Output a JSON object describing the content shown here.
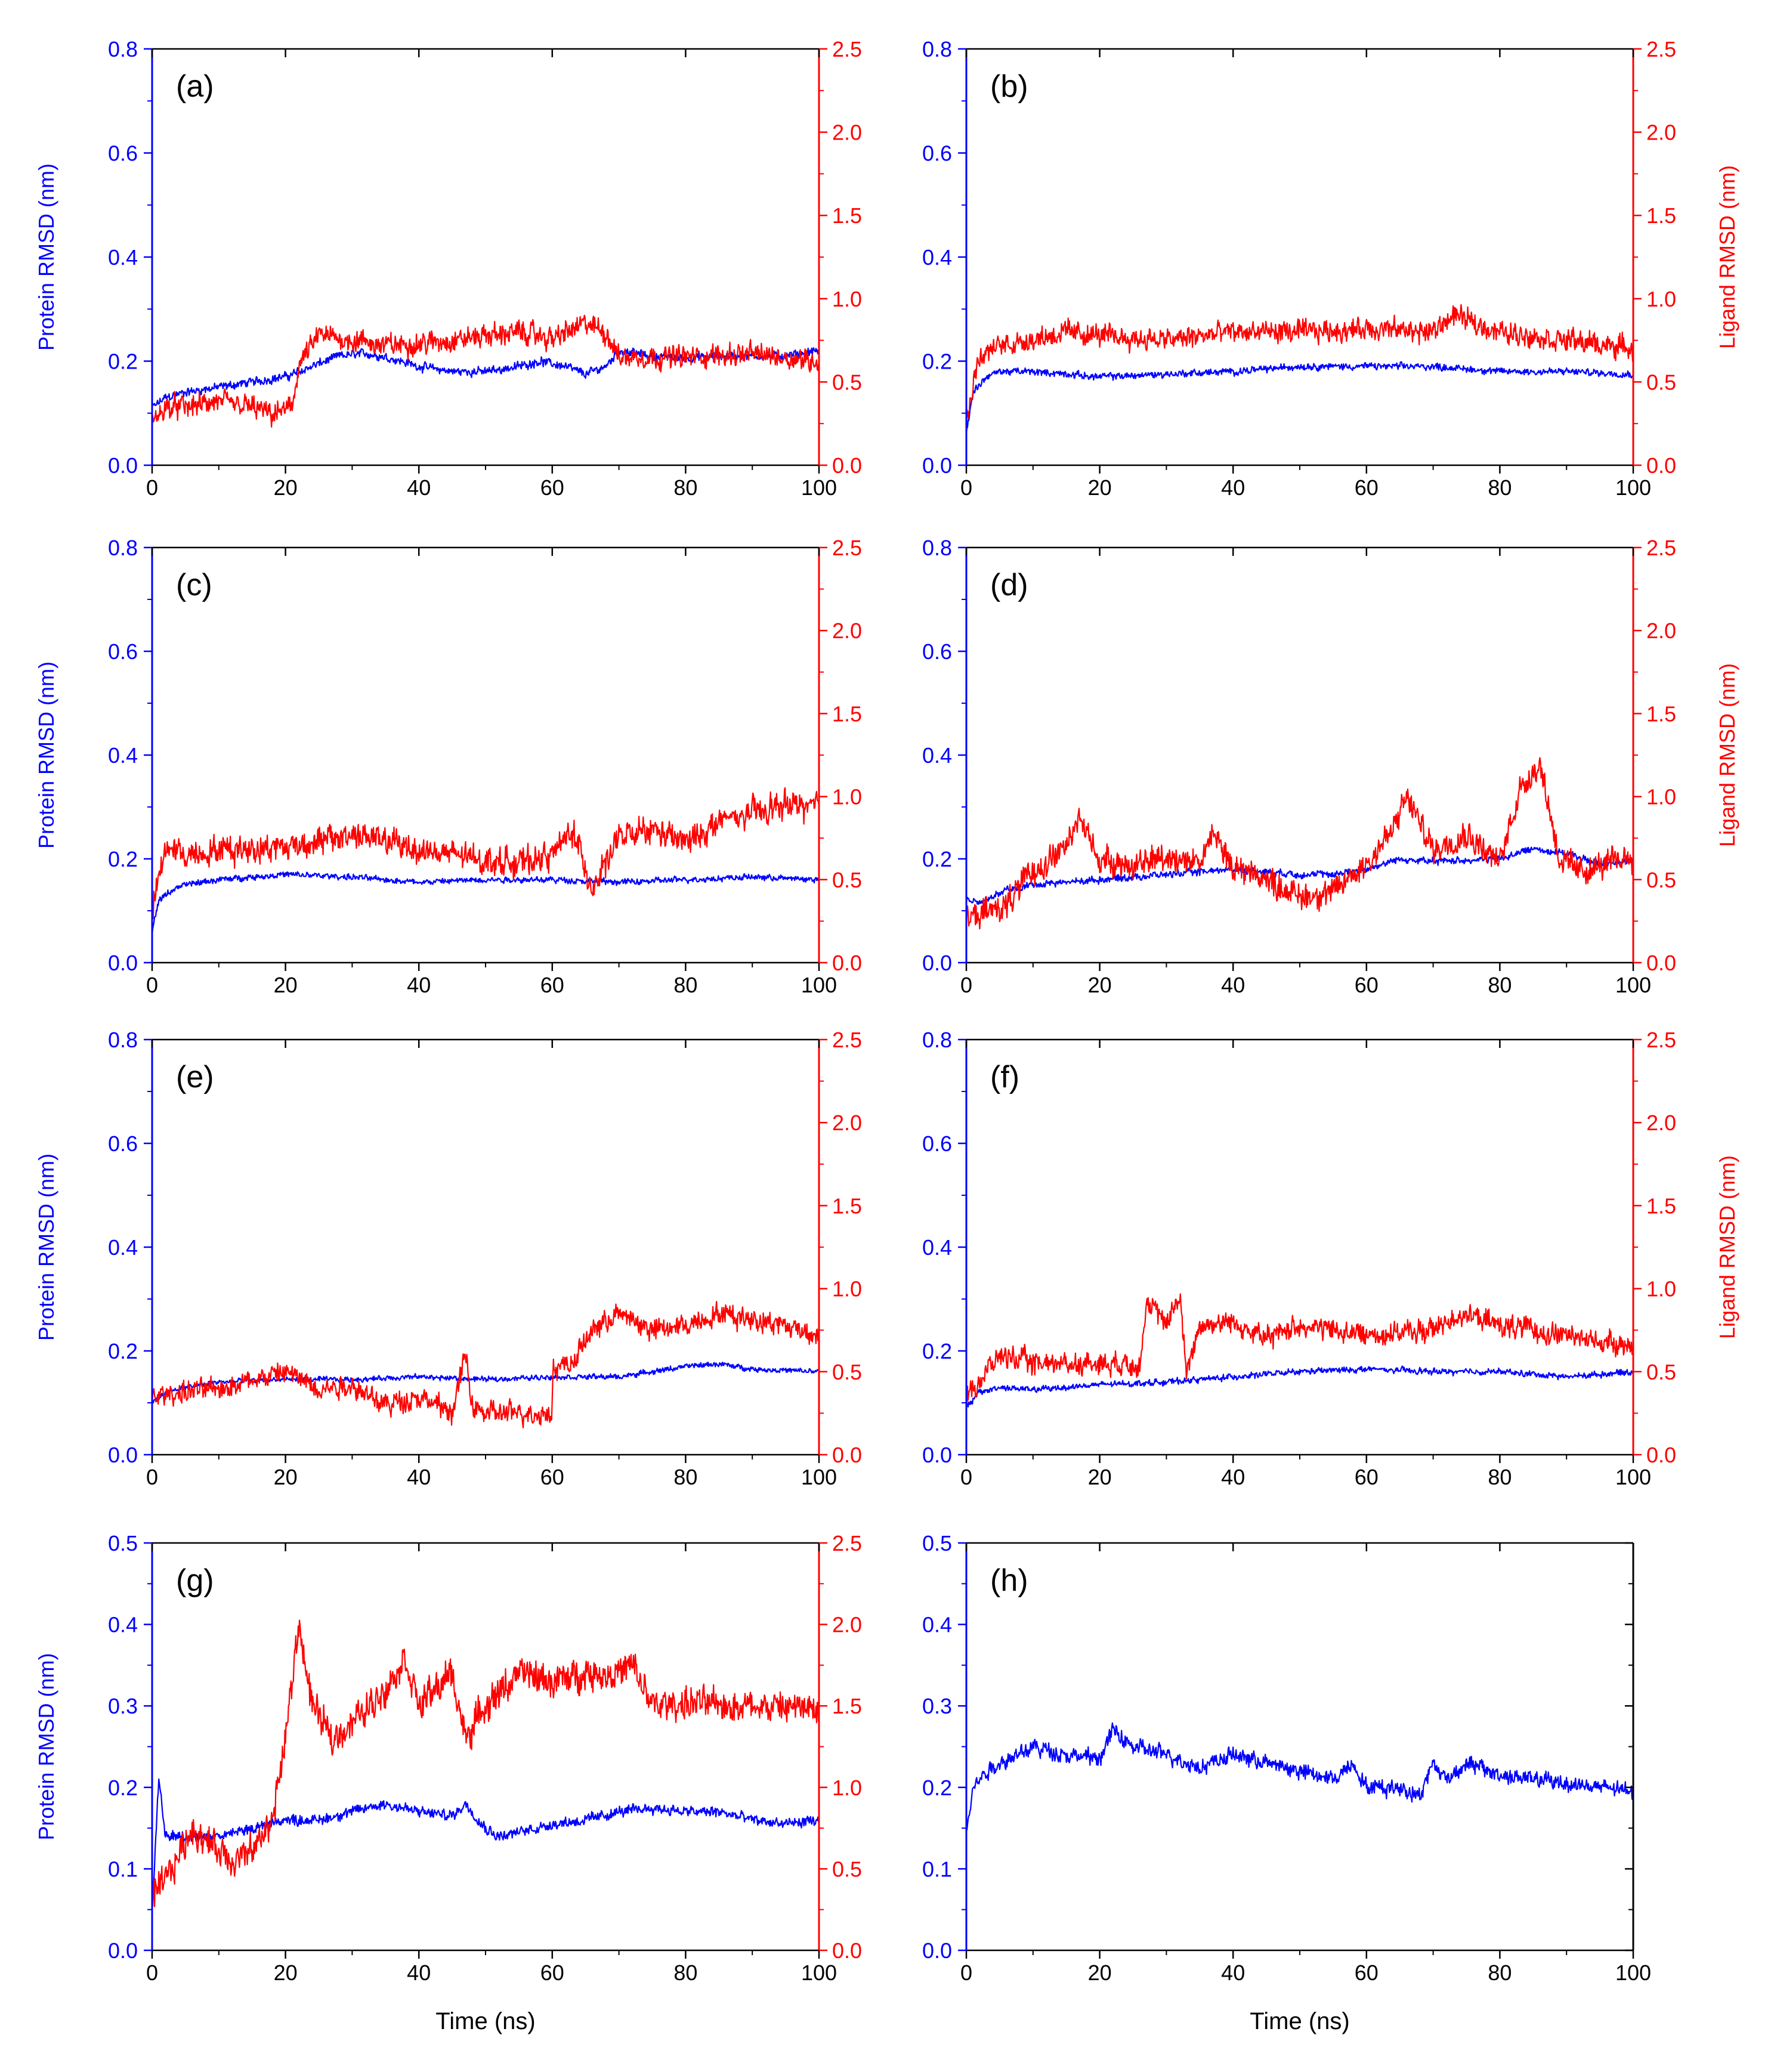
{
  "figure": {
    "colors": {
      "protein": "#0000ff",
      "ligand": "#ff0000",
      "frame": "#000000"
    }
  },
  "chart_data": [
    {
      "panel": "(a)",
      "type": "line",
      "xlabel": "",
      "ylabel_left": "Protein RMSD (nm)",
      "ylabel_right": "",
      "xlim": [
        0,
        100
      ],
      "xticks": [
        "0",
        "20",
        "40",
        "60",
        "80",
        "100"
      ],
      "ylim_left": [
        0,
        0.8
      ],
      "yticks_left": [
        "0.0",
        "0.2",
        "0.4",
        "0.6",
        "0.8"
      ],
      "ylim_right": [
        0,
        2.5
      ],
      "yticks_right": [
        "0.0",
        "0.5",
        "1.0",
        "1.5",
        "2.0",
        "2.5"
      ],
      "series": [
        {
          "name": "Protein RMSD",
          "axis": "left",
          "color": "#0000ff",
          "x": [
            0,
            2,
            5,
            10,
            15,
            20,
            24,
            28,
            32,
            36,
            40,
            45,
            50,
            55,
            58,
            62,
            65,
            68,
            70,
            75,
            80,
            85,
            90,
            95,
            100
          ],
          "y": [
            0.11,
            0.13,
            0.14,
            0.15,
            0.16,
            0.17,
            0.19,
            0.21,
            0.215,
            0.205,
            0.19,
            0.18,
            0.18,
            0.19,
            0.2,
            0.19,
            0.175,
            0.19,
            0.22,
            0.21,
            0.205,
            0.21,
            0.21,
            0.21,
            0.22
          ],
          "noise": 0.01
        },
        {
          "name": "Ligand RMSD",
          "axis": "right",
          "color": "#ff0000",
          "x": [
            0,
            2,
            5,
            10,
            15,
            18,
            21,
            22,
            25,
            30,
            35,
            40,
            45,
            50,
            55,
            60,
            65,
            68,
            70,
            75,
            80,
            85,
            90,
            95,
            100
          ],
          "y": [
            0.25,
            0.35,
            0.35,
            0.38,
            0.35,
            0.3,
            0.35,
            0.6,
            0.78,
            0.75,
            0.72,
            0.73,
            0.75,
            0.78,
            0.8,
            0.76,
            0.85,
            0.8,
            0.65,
            0.65,
            0.65,
            0.66,
            0.67,
            0.65,
            0.62
          ],
          "noise": 0.08
        }
      ]
    },
    {
      "panel": "(b)",
      "type": "line",
      "xlabel": "",
      "ylabel_left": "",
      "ylabel_right": "Ligand RMSD (nm)",
      "xlim": [
        0,
        100
      ],
      "xticks": [
        "0",
        "20",
        "40",
        "60",
        "80",
        "100"
      ],
      "ylim_left": [
        0,
        0.8
      ],
      "yticks_left": [
        "0.0",
        "0.2",
        "0.4",
        "0.6",
        "0.8"
      ],
      "ylim_right": [
        0,
        2.5
      ],
      "yticks_right": [
        "0.0",
        "0.5",
        "1.0",
        "1.5",
        "2.0",
        "2.5"
      ],
      "series": [
        {
          "name": "Protein RMSD",
          "axis": "left",
          "color": "#0000ff",
          "x": [
            0,
            1,
            3,
            5,
            10,
            20,
            30,
            40,
            50,
            60,
            70,
            80,
            90,
            100
          ],
          "y": [
            0.06,
            0.14,
            0.17,
            0.18,
            0.18,
            0.17,
            0.175,
            0.18,
            0.19,
            0.19,
            0.19,
            0.18,
            0.18,
            0.175
          ],
          "noise": 0.008
        },
        {
          "name": "Ligand RMSD",
          "axis": "right",
          "color": "#ff0000",
          "x": [
            0,
            1,
            2,
            5,
            10,
            15,
            20,
            30,
            40,
            50,
            60,
            70,
            73,
            80,
            90,
            100
          ],
          "y": [
            0.25,
            0.5,
            0.65,
            0.72,
            0.76,
            0.8,
            0.78,
            0.75,
            0.8,
            0.8,
            0.82,
            0.8,
            0.9,
            0.8,
            0.75,
            0.7
          ],
          "noise": 0.08
        }
      ]
    },
    {
      "panel": "(c)",
      "type": "line",
      "xlabel": "",
      "ylabel_left": "Protein RMSD (nm)",
      "ylabel_right": "",
      "xlim": [
        0,
        100
      ],
      "xticks": [
        "0",
        "20",
        "40",
        "60",
        "80",
        "100"
      ],
      "ylim_left": [
        0,
        0.8
      ],
      "yticks_left": [
        "0.0",
        "0.2",
        "0.4",
        "0.6",
        "0.8"
      ],
      "ylim_right": [
        0,
        2.5
      ],
      "yticks_right": [
        "0.0",
        "0.5",
        "1.0",
        "1.5",
        "2.0",
        "2.5"
      ],
      "series": [
        {
          "name": "Protein RMSD",
          "axis": "left",
          "color": "#0000ff",
          "x": [
            0,
            1,
            3,
            5,
            10,
            20,
            30,
            40,
            50,
            60,
            70,
            80,
            90,
            100
          ],
          "y": [
            0.06,
            0.12,
            0.14,
            0.15,
            0.16,
            0.17,
            0.165,
            0.155,
            0.16,
            0.16,
            0.155,
            0.16,
            0.165,
            0.16
          ],
          "noise": 0.007
        },
        {
          "name": "Ligand RMSD",
          "axis": "right",
          "color": "#ff0000",
          "x": [
            0,
            2,
            5,
            10,
            20,
            28,
            30,
            40,
            50,
            55,
            60,
            63,
            66,
            70,
            75,
            80,
            85,
            90,
            95,
            100
          ],
          "y": [
            0.3,
            0.7,
            0.65,
            0.68,
            0.7,
            0.75,
            0.78,
            0.68,
            0.62,
            0.6,
            0.65,
            0.8,
            0.45,
            0.75,
            0.8,
            0.72,
            0.85,
            0.9,
            0.95,
            0.95
          ],
          "noise": 0.1
        }
      ]
    },
    {
      "panel": "(d)",
      "type": "line",
      "xlabel": "",
      "ylabel_left": "",
      "ylabel_right": "Ligand RMSD (nm)",
      "xlim": [
        0,
        100
      ],
      "xticks": [
        "0",
        "20",
        "40",
        "60",
        "80",
        "100"
      ],
      "ylim_left": [
        0,
        0.8
      ],
      "yticks_left": [
        "0.0",
        "0.2",
        "0.4",
        "0.6",
        "0.8"
      ],
      "ylim_right": [
        0,
        2.5
      ],
      "yticks_right": [
        "0.0",
        "0.5",
        "1.0",
        "1.5",
        "2.0",
        "2.5"
      ],
      "series": [
        {
          "name": "Protein RMSD",
          "axis": "left",
          "color": "#0000ff",
          "x": [
            0,
            3,
            6,
            10,
            20,
            30,
            40,
            50,
            55,
            60,
            65,
            70,
            80,
            85,
            90,
            95,
            100
          ],
          "y": [
            0.12,
            0.12,
            0.14,
            0.15,
            0.16,
            0.17,
            0.18,
            0.17,
            0.17,
            0.18,
            0.2,
            0.195,
            0.2,
            0.22,
            0.21,
            0.19,
            0.2
          ],
          "noise": 0.008
        },
        {
          "name": "Ligand RMSD",
          "axis": "right",
          "color": "#ff0000",
          "x": [
            0,
            3,
            6,
            10,
            15,
            17,
            20,
            25,
            30,
            35,
            37,
            40,
            45,
            50,
            55,
            60,
            64,
            66,
            70,
            75,
            80,
            83,
            86,
            89,
            92,
            95,
            100
          ],
          "y": [
            0.25,
            0.3,
            0.35,
            0.55,
            0.7,
            0.88,
            0.62,
            0.58,
            0.65,
            0.6,
            0.78,
            0.58,
            0.5,
            0.4,
            0.42,
            0.6,
            0.8,
            1.0,
            0.68,
            0.78,
            0.6,
            1.05,
            1.2,
            0.62,
            0.55,
            0.58,
            0.65
          ],
          "noise": 0.1
        }
      ]
    },
    {
      "panel": "(e)",
      "type": "line",
      "xlabel": "",
      "ylabel_left": "Protein RMSD (nm)",
      "ylabel_right": "",
      "xlim": [
        0,
        100
      ],
      "xticks": [
        "0",
        "20",
        "40",
        "60",
        "80",
        "100"
      ],
      "ylim_left": [
        0,
        0.8
      ],
      "yticks_left": [
        "0.0",
        "0.2",
        "0.4",
        "0.6",
        "0.8"
      ],
      "ylim_right": [
        0,
        2.5
      ],
      "yticks_right": [
        "0.0",
        "0.5",
        "1.0",
        "1.5",
        "2.0",
        "2.5"
      ],
      "series": [
        {
          "name": "Protein RMSD",
          "axis": "left",
          "color": "#0000ff",
          "x": [
            0,
            2,
            5,
            10,
            20,
            30,
            40,
            50,
            60,
            70,
            80,
            85,
            90,
            100
          ],
          "y": [
            0.1,
            0.12,
            0.13,
            0.14,
            0.145,
            0.145,
            0.15,
            0.145,
            0.15,
            0.15,
            0.17,
            0.175,
            0.165,
            0.16
          ],
          "noise": 0.006
        },
        {
          "name": "Ligand RMSD",
          "axis": "right",
          "color": "#ff0000",
          "x": [
            0,
            5,
            10,
            15,
            20,
            25,
            30,
            35,
            40,
            45,
            47,
            48,
            50,
            55,
            59.9,
            60.1,
            63,
            66,
            70,
            75,
            80,
            85,
            90,
            95,
            100
          ],
          "y": [
            0.35,
            0.38,
            0.4,
            0.45,
            0.5,
            0.4,
            0.42,
            0.3,
            0.35,
            0.25,
            0.6,
            0.3,
            0.25,
            0.25,
            0.25,
            0.52,
            0.55,
            0.75,
            0.85,
            0.75,
            0.78,
            0.85,
            0.82,
            0.78,
            0.72
          ],
          "noise": 0.08
        }
      ]
    },
    {
      "panel": "(f)",
      "type": "line",
      "xlabel": "",
      "ylabel_left": "",
      "ylabel_right": "Ligand RMSD (nm)",
      "xlim": [
        0,
        100
      ],
      "xticks": [
        "0",
        "20",
        "40",
        "60",
        "80",
        "100"
      ],
      "ylim_left": [
        0,
        0.8
      ],
      "yticks_left": [
        "0.0",
        "0.2",
        "0.4",
        "0.6",
        "0.8"
      ],
      "ylim_right": [
        0,
        2.5
      ],
      "yticks_right": [
        "0.0",
        "0.5",
        "1.0",
        "1.5",
        "2.0",
        "2.5"
      ],
      "series": [
        {
          "name": "Protein RMSD",
          "axis": "left",
          "color": "#0000ff",
          "x": [
            0,
            2,
            5,
            10,
            20,
            30,
            40,
            50,
            60,
            70,
            80,
            90,
            100
          ],
          "y": [
            0.09,
            0.12,
            0.13,
            0.125,
            0.135,
            0.14,
            0.15,
            0.16,
            0.165,
            0.16,
            0.16,
            0.15,
            0.16
          ],
          "noise": 0.007
        },
        {
          "name": "Ligand RMSD",
          "axis": "right",
          "color": "#ff0000",
          "x": [
            0,
            3,
            5,
            10,
            20,
            26,
            27,
            30,
            32,
            33,
            35,
            40,
            45,
            50,
            60,
            70,
            74,
            80,
            90,
            100
          ],
          "y": [
            0.35,
            0.5,
            0.6,
            0.55,
            0.55,
            0.55,
            0.9,
            0.8,
            0.95,
            0.5,
            0.78,
            0.8,
            0.7,
            0.78,
            0.72,
            0.75,
            0.85,
            0.78,
            0.72,
            0.65
          ],
          "noise": 0.08
        }
      ]
    },
    {
      "panel": "(g)",
      "type": "line",
      "xlabel": "Time (ns)",
      "ylabel_left": "Protein RMSD (nm)",
      "ylabel_right": "",
      "xlim": [
        0,
        100
      ],
      "xticks": [
        "0",
        "20",
        "40",
        "60",
        "80",
        "100"
      ],
      "ylim_left": [
        0,
        0.5
      ],
      "yticks_left": [
        "0.0",
        "0.1",
        "0.2",
        "0.3",
        "0.4",
        "0.5"
      ],
      "ylim_right": [
        0,
        2.5
      ],
      "yticks_right": [
        "0.0",
        "0.5",
        "1.0",
        "1.5",
        "2.0",
        "2.5"
      ],
      "series": [
        {
          "name": "Protein RMSD",
          "axis": "left",
          "color": "#0000ff",
          "x": [
            0,
            1,
            2,
            5,
            10,
            15,
            20,
            25,
            30,
            35,
            40,
            45,
            47,
            50,
            52,
            55,
            60,
            65,
            70,
            75,
            80,
            85,
            90,
            95,
            100
          ],
          "y": [
            0.05,
            0.21,
            0.14,
            0.14,
            0.14,
            0.15,
            0.16,
            0.16,
            0.17,
            0.18,
            0.17,
            0.165,
            0.18,
            0.15,
            0.14,
            0.145,
            0.155,
            0.16,
            0.17,
            0.175,
            0.17,
            0.17,
            0.16,
            0.155,
            0.16
          ],
          "noise": 0.008
        },
        {
          "name": "Ligand RMSD",
          "axis": "right",
          "color": "#ff0000",
          "x": [
            0,
            3,
            6,
            9,
            12,
            15,
            18,
            20,
            22,
            24,
            27,
            30,
            35,
            38,
            40,
            45,
            47,
            50,
            55,
            60,
            65,
            70,
            72,
            75,
            80,
            90,
            100
          ],
          "y": [
            0.3,
            0.5,
            0.75,
            0.65,
            0.55,
            0.6,
            0.8,
            1.3,
            2.0,
            1.5,
            1.3,
            1.4,
            1.6,
            1.8,
            1.5,
            1.7,
            1.3,
            1.5,
            1.7,
            1.65,
            1.7,
            1.7,
            1.75,
            1.5,
            1.52,
            1.5,
            1.48
          ],
          "noise": 0.12
        }
      ]
    },
    {
      "panel": "(h)",
      "type": "line",
      "xlabel": "Time (ns)",
      "ylabel_left": "",
      "ylabel_right": "",
      "xlim": [
        0,
        100
      ],
      "xticks": [
        "0",
        "20",
        "40",
        "60",
        "80",
        "100"
      ],
      "ylim_left": [
        0,
        0.5
      ],
      "yticks_left": [
        "0.0",
        "0.1",
        "0.2",
        "0.3",
        "0.4",
        "0.5"
      ],
      "ylim_right": null,
      "yticks_right": [],
      "series": [
        {
          "name": "Protein RMSD",
          "axis": "left",
          "color": "#0000ff",
          "x": [
            0,
            1,
            3,
            5,
            10,
            15,
            20,
            22,
            25,
            30,
            35,
            40,
            45,
            50,
            55,
            58,
            60,
            65,
            68,
            70,
            72,
            75,
            80,
            85,
            90,
            95,
            100
          ],
          "y": [
            0.15,
            0.2,
            0.22,
            0.23,
            0.25,
            0.24,
            0.235,
            0.27,
            0.25,
            0.24,
            0.225,
            0.24,
            0.23,
            0.22,
            0.21,
            0.23,
            0.2,
            0.2,
            0.19,
            0.23,
            0.21,
            0.23,
            0.215,
            0.21,
            0.205,
            0.2,
            0.195
          ],
          "noise": 0.012
        }
      ]
    }
  ]
}
